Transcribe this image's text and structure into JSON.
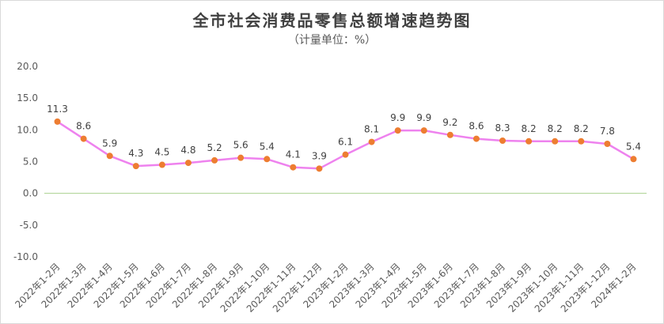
{
  "chart_data": {
    "type": "line",
    "title": "全市社会消费品零售总额增速趋势图",
    "subtitle": "（计量单位：%）",
    "categories": [
      "2022年1-2月",
      "2022年1-3月",
      "2022年1-4月",
      "2022年1-5月",
      "2022年1-6月",
      "2022年1-7月",
      "2022年1-8月",
      "2022年1-9月",
      "2022年1-10月",
      "2022年1-11月",
      "2022年1-12月",
      "2023年1-2月",
      "2023年1-3月",
      "2023年1-4月",
      "2023年1-5月",
      "2023年1-6月",
      "2023年1-7月",
      "2023年1-8月",
      "2023年1-9月",
      "2023年1-10月",
      "2023年1-11月",
      "2023年1-12月",
      "2024年1-2月"
    ],
    "series": [
      {
        "values": [
          11.3,
          8.6,
          5.9,
          4.3,
          4.5,
          4.8,
          5.2,
          5.6,
          5.4,
          4.1,
          3.9,
          6.1,
          8.1,
          9.9,
          9.9,
          9.2,
          8.6,
          8.3,
          8.2,
          8.2,
          8.2,
          7.8,
          5.4
        ]
      }
    ],
    "data_labels": [
      "11.3",
      "8.6",
      "5.9",
      "4.3",
      "4.5",
      "4.8",
      "5.2",
      "5.6",
      "5.4",
      "4.1",
      "3.9",
      "6.1",
      "8.1",
      "9.9",
      "9.9",
      "9.2",
      "8.6",
      "8.3",
      "8.2",
      "8.2",
      "8.2",
      "7.8",
      "5.4"
    ],
    "ylim": [
      -10,
      20
    ],
    "yticks": [
      "20.0",
      "15.0",
      "10.0",
      "5.0",
      "0.0",
      "-5.0",
      "-10.0"
    ],
    "ytick_values": [
      20,
      15,
      10,
      5,
      0,
      -5,
      -10
    ],
    "grid": false,
    "legend": "none",
    "colors": {
      "line": "#ee82ee",
      "marker": "#ed7d31",
      "zero_line": "#a9d18e"
    }
  }
}
